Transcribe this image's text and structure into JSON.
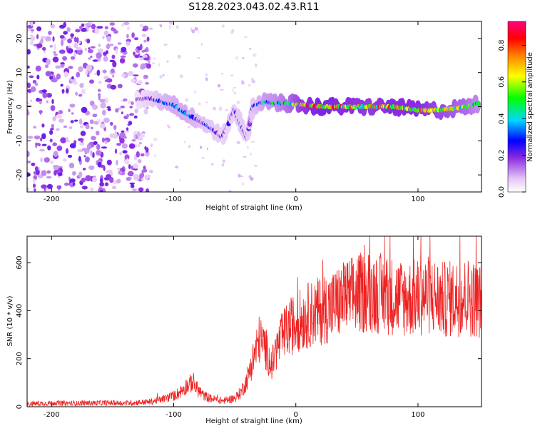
{
  "title": "S128.2023.043.02.43.R11",
  "colors": {
    "snr_line": "#ee2222",
    "spectrogram_weak": "#e7c9f5",
    "spectrogram_mid": "#7a0dd8",
    "spectrogram_peak": "#ff0000"
  },
  "chart_data": [
    {
      "type": "heatmap",
      "xlabel": "Height of straight line (km)",
      "ylabel": "Frequency (Hz)",
      "xlim": [
        -220,
        152
      ],
      "ylim": [
        -25,
        25
      ],
      "xticks": [
        -200,
        -100,
        0,
        100
      ],
      "yticks": [
        -20,
        -10,
        0,
        10,
        20
      ],
      "colorbar": {
        "label": "Normalized spectral amplitude",
        "range": [
          0,
          0.93
        ],
        "ticks": [
          "0.0",
          "0.2",
          "0.4",
          "0.6",
          "0.8"
        ],
        "colormap": [
          "#ffffff",
          "#d9b3f0",
          "#8a2be2",
          "#0000ff",
          "#00ffff",
          "#00ff00",
          "#ffff00",
          "#ff8000",
          "#ff0000",
          "#ff00ff"
        ]
      },
      "signal_track": [
        {
          "x": -130,
          "f": 2.0,
          "amp": 0.15
        },
        {
          "x": -120,
          "f": 2.5,
          "amp": 0.25
        },
        {
          "x": -110,
          "f": 1.5,
          "amp": 0.35
        },
        {
          "x": -100,
          "f": 0.5,
          "amp": 0.4
        },
        {
          "x": -90,
          "f": -2.0,
          "amp": 0.4
        },
        {
          "x": -80,
          "f": -4.0,
          "amp": 0.35
        },
        {
          "x": -70,
          "f": -6.0,
          "amp": 0.3
        },
        {
          "x": -60,
          "f": -9.0,
          "amp": 0.25
        },
        {
          "x": -50,
          "f": -1.0,
          "amp": 0.25
        },
        {
          "x": -45,
          "f": -5.0,
          "amp": 0.3
        },
        {
          "x": -40,
          "f": -9.0,
          "amp": 0.25
        },
        {
          "x": -35,
          "f": 0.0,
          "amp": 0.3
        },
        {
          "x": -25,
          "f": 1.5,
          "amp": 0.45
        },
        {
          "x": -15,
          "f": 1.0,
          "amp": 0.5
        },
        {
          "x": -5,
          "f": 1.0,
          "amp": 0.6
        },
        {
          "x": 5,
          "f": 0.5,
          "amp": 0.75
        },
        {
          "x": 20,
          "f": 0.0,
          "amp": 0.85
        },
        {
          "x": 40,
          "f": 0.0,
          "amp": 0.8
        },
        {
          "x": 60,
          "f": 0.0,
          "amp": 0.75
        },
        {
          "x": 80,
          "f": 0.0,
          "amp": 0.8
        },
        {
          "x": 100,
          "f": -1.0,
          "amp": 0.8
        },
        {
          "x": 120,
          "f": -1.0,
          "amp": 0.7
        },
        {
          "x": 140,
          "f": 0.0,
          "amp": 0.6
        },
        {
          "x": 150,
          "f": 1.0,
          "amp": 0.5
        }
      ],
      "noise_region": {
        "x_from": -220,
        "x_to": -120
      }
    },
    {
      "type": "line",
      "xlabel": "Height of straight line (km)",
      "ylabel": "SNR (10 * v/v)",
      "xlim": [
        -220,
        152
      ],
      "ylim": [
        0,
        710
      ],
      "xticks": [
        -200,
        -100,
        0,
        100
      ],
      "yticks": [
        0,
        200,
        400,
        600
      ],
      "series": [
        {
          "x": [
            -220,
            -200,
            -180,
            -160,
            -140,
            -120,
            -110,
            -100,
            -95,
            -90,
            -85,
            -80,
            -75,
            -70,
            -65,
            -60,
            -55,
            -50,
            -45,
            -40,
            -35,
            -30,
            -25,
            -20,
            -15,
            -10,
            -5,
            0,
            10,
            20,
            30,
            40,
            50,
            60,
            70,
            80,
            90,
            100,
            110,
            120,
            130,
            140,
            150
          ],
          "y": [
            12,
            15,
            14,
            16,
            15,
            20,
            30,
            45,
            60,
            85,
            100,
            70,
            45,
            35,
            30,
            25,
            30,
            35,
            60,
            110,
            200,
            280,
            250,
            170,
            250,
            300,
            330,
            350,
            380,
            400,
            420,
            450,
            470,
            480,
            470,
            460,
            450,
            455,
            465,
            445,
            450,
            460,
            440
          ]
        }
      ]
    }
  ]
}
